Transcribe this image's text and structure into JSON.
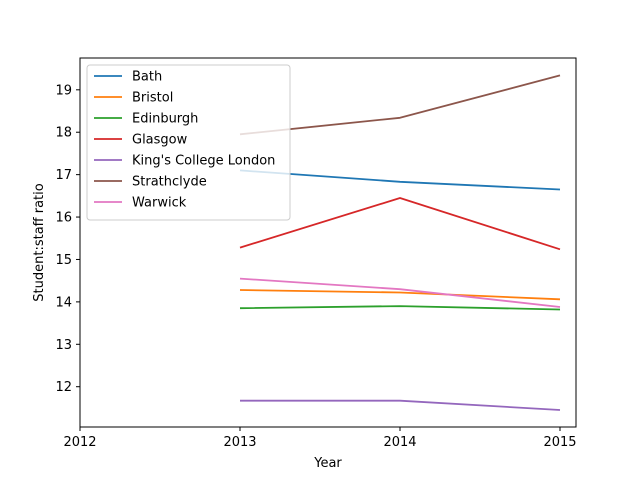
{
  "chart_data": {
    "type": "line",
    "title": "",
    "xlabel": "Year",
    "ylabel": "Student:staff ratio",
    "xlim": [
      2012,
      2015.1
    ],
    "ylim": [
      11.05,
      19.75
    ],
    "x_ticks": [
      "2012",
      "2013",
      "2014",
      "2015"
    ],
    "y_ticks": [
      "12",
      "13",
      "14",
      "15",
      "16",
      "17",
      "18",
      "19"
    ],
    "grid": false,
    "legend_position": "top-left",
    "x": [
      2013,
      2014,
      2015
    ],
    "series": [
      {
        "name": "Bath",
        "color": "#1f77b4",
        "values": [
          17.1,
          16.83,
          16.65
        ]
      },
      {
        "name": "Bristol",
        "color": "#ff7f0e",
        "values": [
          14.28,
          14.22,
          14.06
        ]
      },
      {
        "name": "Edinburgh",
        "color": "#2ca02c",
        "values": [
          13.85,
          13.9,
          13.82
        ]
      },
      {
        "name": "Glasgow",
        "color": "#d62728",
        "values": [
          15.28,
          16.45,
          15.24
        ]
      },
      {
        "name": "King's College London",
        "color": "#9467bd",
        "values": [
          11.67,
          11.67,
          11.45
        ]
      },
      {
        "name": "Strathclyde",
        "color": "#8c564b",
        "values": [
          17.95,
          18.34,
          19.34
        ]
      },
      {
        "name": "Warwick",
        "color": "#e377c2",
        "values": [
          14.55,
          14.3,
          13.88
        ]
      }
    ]
  }
}
